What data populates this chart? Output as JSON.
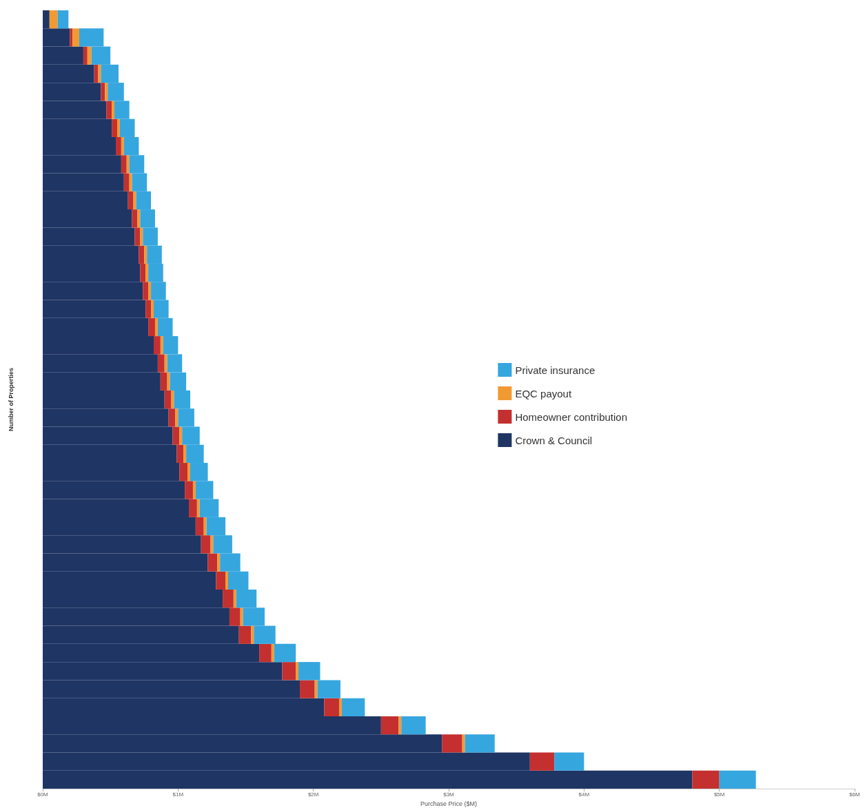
{
  "chart_data": {
    "type": "bar",
    "orientation": "horizontal",
    "stacked": true,
    "xlabel": "Purchase Price ($M)",
    "ylabel": "Number of Properties",
    "categories": [
      null,
      null,
      null,
      null,
      null,
      null,
      null,
      null,
      null,
      null,
      null,
      null,
      null,
      null,
      null,
      null,
      null,
      null,
      null,
      null,
      null,
      null,
      null,
      null,
      null,
      null,
      null,
      null,
      null,
      null,
      null,
      null,
      null,
      null,
      null,
      null,
      null,
      null,
      null,
      null,
      null,
      null,
      null
    ],
    "series": [
      {
        "name": "Crown & Council",
        "color": "#1f3564",
        "values": [
          0.05,
          0.2,
          0.3,
          0.38,
          0.43,
          0.47,
          0.51,
          0.54,
          0.58,
          0.6,
          0.63,
          0.66,
          0.68,
          0.71,
          0.72,
          0.74,
          0.76,
          0.78,
          0.82,
          0.85,
          0.87,
          0.9,
          0.93,
          0.96,
          0.99,
          1.01,
          1.05,
          1.08,
          1.13,
          1.17,
          1.22,
          1.28,
          1.33,
          1.38,
          1.45,
          1.6,
          1.77,
          1.9,
          2.08,
          2.5,
          2.95,
          3.6,
          4.8
        ]
      },
      {
        "name": "Homeowner contribution",
        "color": "#c3302f",
        "values": [
          0.0,
          0.02,
          0.03,
          0.03,
          0.03,
          0.04,
          0.04,
          0.04,
          0.04,
          0.04,
          0.04,
          0.04,
          0.04,
          0.04,
          0.04,
          0.04,
          0.04,
          0.05,
          0.05,
          0.05,
          0.05,
          0.05,
          0.05,
          0.05,
          0.05,
          0.06,
          0.06,
          0.06,
          0.06,
          0.07,
          0.07,
          0.07,
          0.08,
          0.08,
          0.09,
          0.09,
          0.1,
          0.11,
          0.11,
          0.13,
          0.15,
          0.18,
          0.2
        ]
      },
      {
        "name": "EQC payout",
        "color": "#f29a32",
        "values": [
          0.06,
          0.05,
          0.03,
          0.02,
          0.02,
          0.02,
          0.02,
          0.02,
          0.02,
          0.02,
          0.02,
          0.02,
          0.02,
          0.02,
          0.02,
          0.02,
          0.02,
          0.02,
          0.02,
          0.02,
          0.02,
          0.02,
          0.02,
          0.02,
          0.02,
          0.02,
          0.02,
          0.02,
          0.02,
          0.02,
          0.02,
          0.02,
          0.02,
          0.02,
          0.02,
          0.02,
          0.02,
          0.02,
          0.02,
          0.02,
          0.02,
          0.0,
          0.0
        ]
      },
      {
        "name": "Private insurance",
        "color": "#36a6df",
        "values": [
          0.08,
          0.18,
          0.14,
          0.13,
          0.12,
          0.11,
          0.11,
          0.11,
          0.11,
          0.11,
          0.11,
          0.11,
          0.11,
          0.11,
          0.11,
          0.11,
          0.11,
          0.11,
          0.11,
          0.11,
          0.12,
          0.12,
          0.12,
          0.13,
          0.13,
          0.13,
          0.13,
          0.14,
          0.14,
          0.14,
          0.15,
          0.15,
          0.15,
          0.16,
          0.16,
          0.16,
          0.16,
          0.17,
          0.17,
          0.18,
          0.22,
          0.22,
          0.27
        ]
      }
    ],
    "xlim": [
      0,
      6
    ],
    "xticks": [
      {
        "value": 0,
        "label": "$0M"
      },
      {
        "value": 1,
        "label": "$1M"
      },
      {
        "value": 2,
        "label": "$2M"
      },
      {
        "value": 3,
        "label": "$3M"
      },
      {
        "value": 4,
        "label": "$4M"
      },
      {
        "value": 5,
        "label": "$5M"
      },
      {
        "value": 6,
        "label": "$6M"
      }
    ],
    "legend": "right",
    "grid": false
  }
}
